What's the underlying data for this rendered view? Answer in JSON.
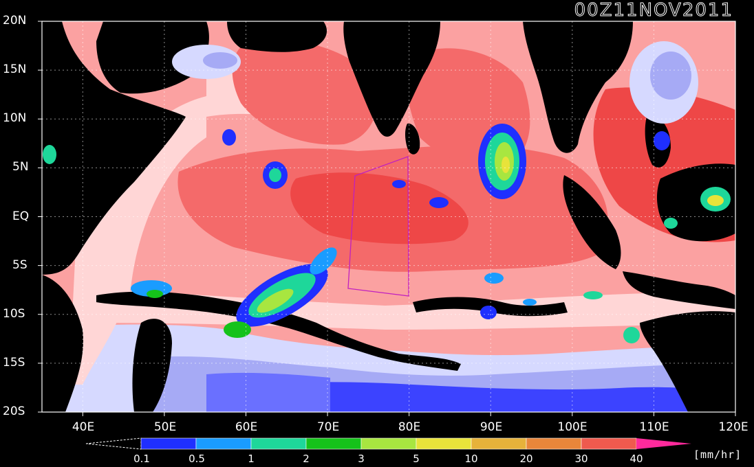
{
  "title": "00Z11NOV2011",
  "lat_labels": [
    "20N",
    "15N",
    "10N",
    "5N",
    "EQ",
    "5S",
    "10S",
    "15S",
    "20S"
  ],
  "lon_labels": [
    "40E",
    "50E",
    "60E",
    "70E",
    "80E",
    "90E",
    "100E",
    "110E",
    "120E"
  ],
  "colorbar": {
    "ticks": [
      "0.1",
      "0.5",
      "1",
      "2",
      "3",
      "5",
      "10",
      "20",
      "30",
      "40"
    ],
    "colors": [
      "#1f2fff",
      "#1a9cff",
      "#1ed79a",
      "#15c21a",
      "#a8e640",
      "#e8e33a",
      "#e6b23a",
      "#e8863a",
      "#ef5a4e",
      "#ff2a9c"
    ],
    "unit": "[mm/hr]"
  },
  "colors": {
    "land": "#000000",
    "ocean_light": "#ffd6d6",
    "ocean_mid": "#fba1a1",
    "ocean_strong": "#f46a6a",
    "ocean_max": "#ee4747",
    "cool_light": "#d6d9ff",
    "cool_mid": "#a6aaf5",
    "cool_deep": "#3c43ff",
    "frame": "#ffffff",
    "box": "#c020c0"
  }
}
